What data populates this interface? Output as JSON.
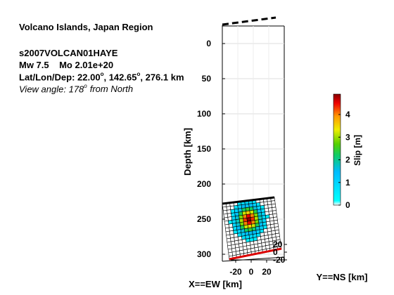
{
  "header": {
    "region": "Volcano Islands, Japan Region",
    "event_id": "s2007VOLCAN01HAYE",
    "mw_label": "Mw 7.5",
    "mo_label": "Mo 2.01e+20",
    "loc_prefix": "Lat/Lon/Dep: 22.00",
    "loc_deg_sym_1": "o",
    "loc_mid": ", 142.65",
    "loc_deg_sym_2": "o",
    "loc_suffix": ", 276.1 km",
    "view_prefix": "View angle: 178",
    "view_deg_sym": "o",
    "view_suffix": "from North"
  },
  "chart_data": {
    "type": "heatmap",
    "zlabel": "Depth [km]",
    "xlabel": "X==EW [km]",
    "ylabel": "Y==NS [km]",
    "depth_ticks": [
      0,
      50,
      100,
      150,
      200,
      250,
      300
    ],
    "depth_range": [
      -25,
      310
    ],
    "x_ticks": [
      -20,
      0,
      20
    ],
    "y_ticks": [
      20,
      0,
      -20
    ],
    "colorbar": {
      "label": "Slip [m]",
      "ticks": [
        0,
        1,
        2,
        3,
        4
      ],
      "range": [
        0,
        4.9
      ],
      "colormap": "jet"
    },
    "fault_grid": {
      "cols": 14,
      "rows": 16
    },
    "slip_patch": {
      "peak_slip_m": 4.9,
      "peak_col": 6.5,
      "peak_row": 5.5,
      "core_width_cells": 1.8,
      "core_height_cells": 2.2,
      "spread_width_cells": 3.2,
      "spread_height_cells": 4.0
    },
    "line_colors": {
      "surface_trace": "#000000",
      "fault_top": "#000000",
      "fault_bottom": "#dd0000",
      "grid": "#000000"
    }
  }
}
